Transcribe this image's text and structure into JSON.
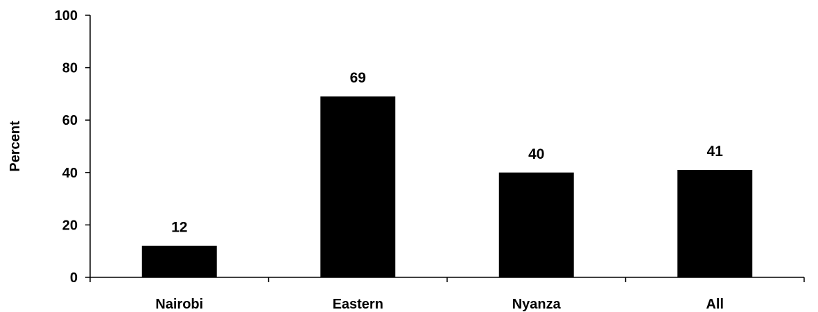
{
  "chart_data": {
    "type": "bar",
    "categories": [
      "Nairobi",
      "Eastern",
      "Nyanza",
      "All"
    ],
    "values": [
      12,
      69,
      40,
      41
    ],
    "data_labels": [
      "12",
      "69",
      "40",
      "41"
    ],
    "title": "",
    "xlabel": "",
    "ylabel": "Percent",
    "ylim": [
      0,
      100
    ],
    "yticks": [
      0,
      20,
      40,
      60,
      80,
      100
    ],
    "grid": false,
    "legend": "none",
    "bar_color": "#000000"
  }
}
